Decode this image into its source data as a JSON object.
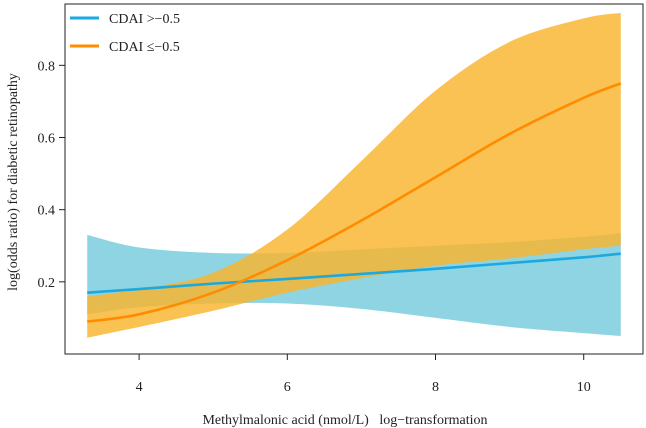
{
  "chart_data": {
    "type": "line",
    "title": "",
    "xlabel": "Methylmalonic acid (nmol/L)   log−transformation",
    "ylabel": "log(odds ratio) for diabetic retinopathy",
    "xlim": [
      3.0,
      10.8
    ],
    "ylim": [
      0.0,
      0.97
    ],
    "x_ticks": [
      4,
      6,
      8,
      10
    ],
    "x_tick_labels": [
      "4",
      "6",
      "8",
      "10"
    ],
    "y_ticks": [
      0.2,
      0.4,
      0.6,
      0.8
    ],
    "y_tick_labels": [
      "0.2",
      "0.4",
      "0.6",
      "0.8"
    ],
    "grid": false,
    "legend_position": "top-left",
    "series": [
      {
        "name": "CDAI >−0.5",
        "color": "#1aa9e0",
        "band_color": "#8fd4e3",
        "x": [
          3.3,
          4.0,
          5.0,
          6.0,
          7.0,
          8.0,
          9.0,
          10.0,
          10.5
        ],
        "y": [
          0.17,
          0.18,
          0.195,
          0.208,
          0.222,
          0.236,
          0.252,
          0.268,
          0.278
        ],
        "lower": [
          0.11,
          0.13,
          0.14,
          0.14,
          0.125,
          0.1,
          0.075,
          0.058,
          0.05
        ],
        "upper": [
          0.33,
          0.295,
          0.28,
          0.28,
          0.29,
          0.3,
          0.31,
          0.325,
          0.335
        ]
      },
      {
        "name": "CDAI ≤−0.5",
        "color": "#ff8c00",
        "band_color": "#f9b52c",
        "x": [
          3.3,
          4.0,
          5.0,
          6.0,
          7.0,
          8.0,
          9.0,
          10.0,
          10.5
        ],
        "y": [
          0.09,
          0.11,
          0.17,
          0.26,
          0.37,
          0.49,
          0.61,
          0.71,
          0.75
        ],
        "lower": [
          0.045,
          0.075,
          0.12,
          0.17,
          0.21,
          0.245,
          0.265,
          0.29,
          0.3
        ],
        "upper": [
          0.16,
          0.18,
          0.225,
          0.345,
          0.535,
          0.73,
          0.865,
          0.93,
          0.945
        ]
      }
    ]
  }
}
